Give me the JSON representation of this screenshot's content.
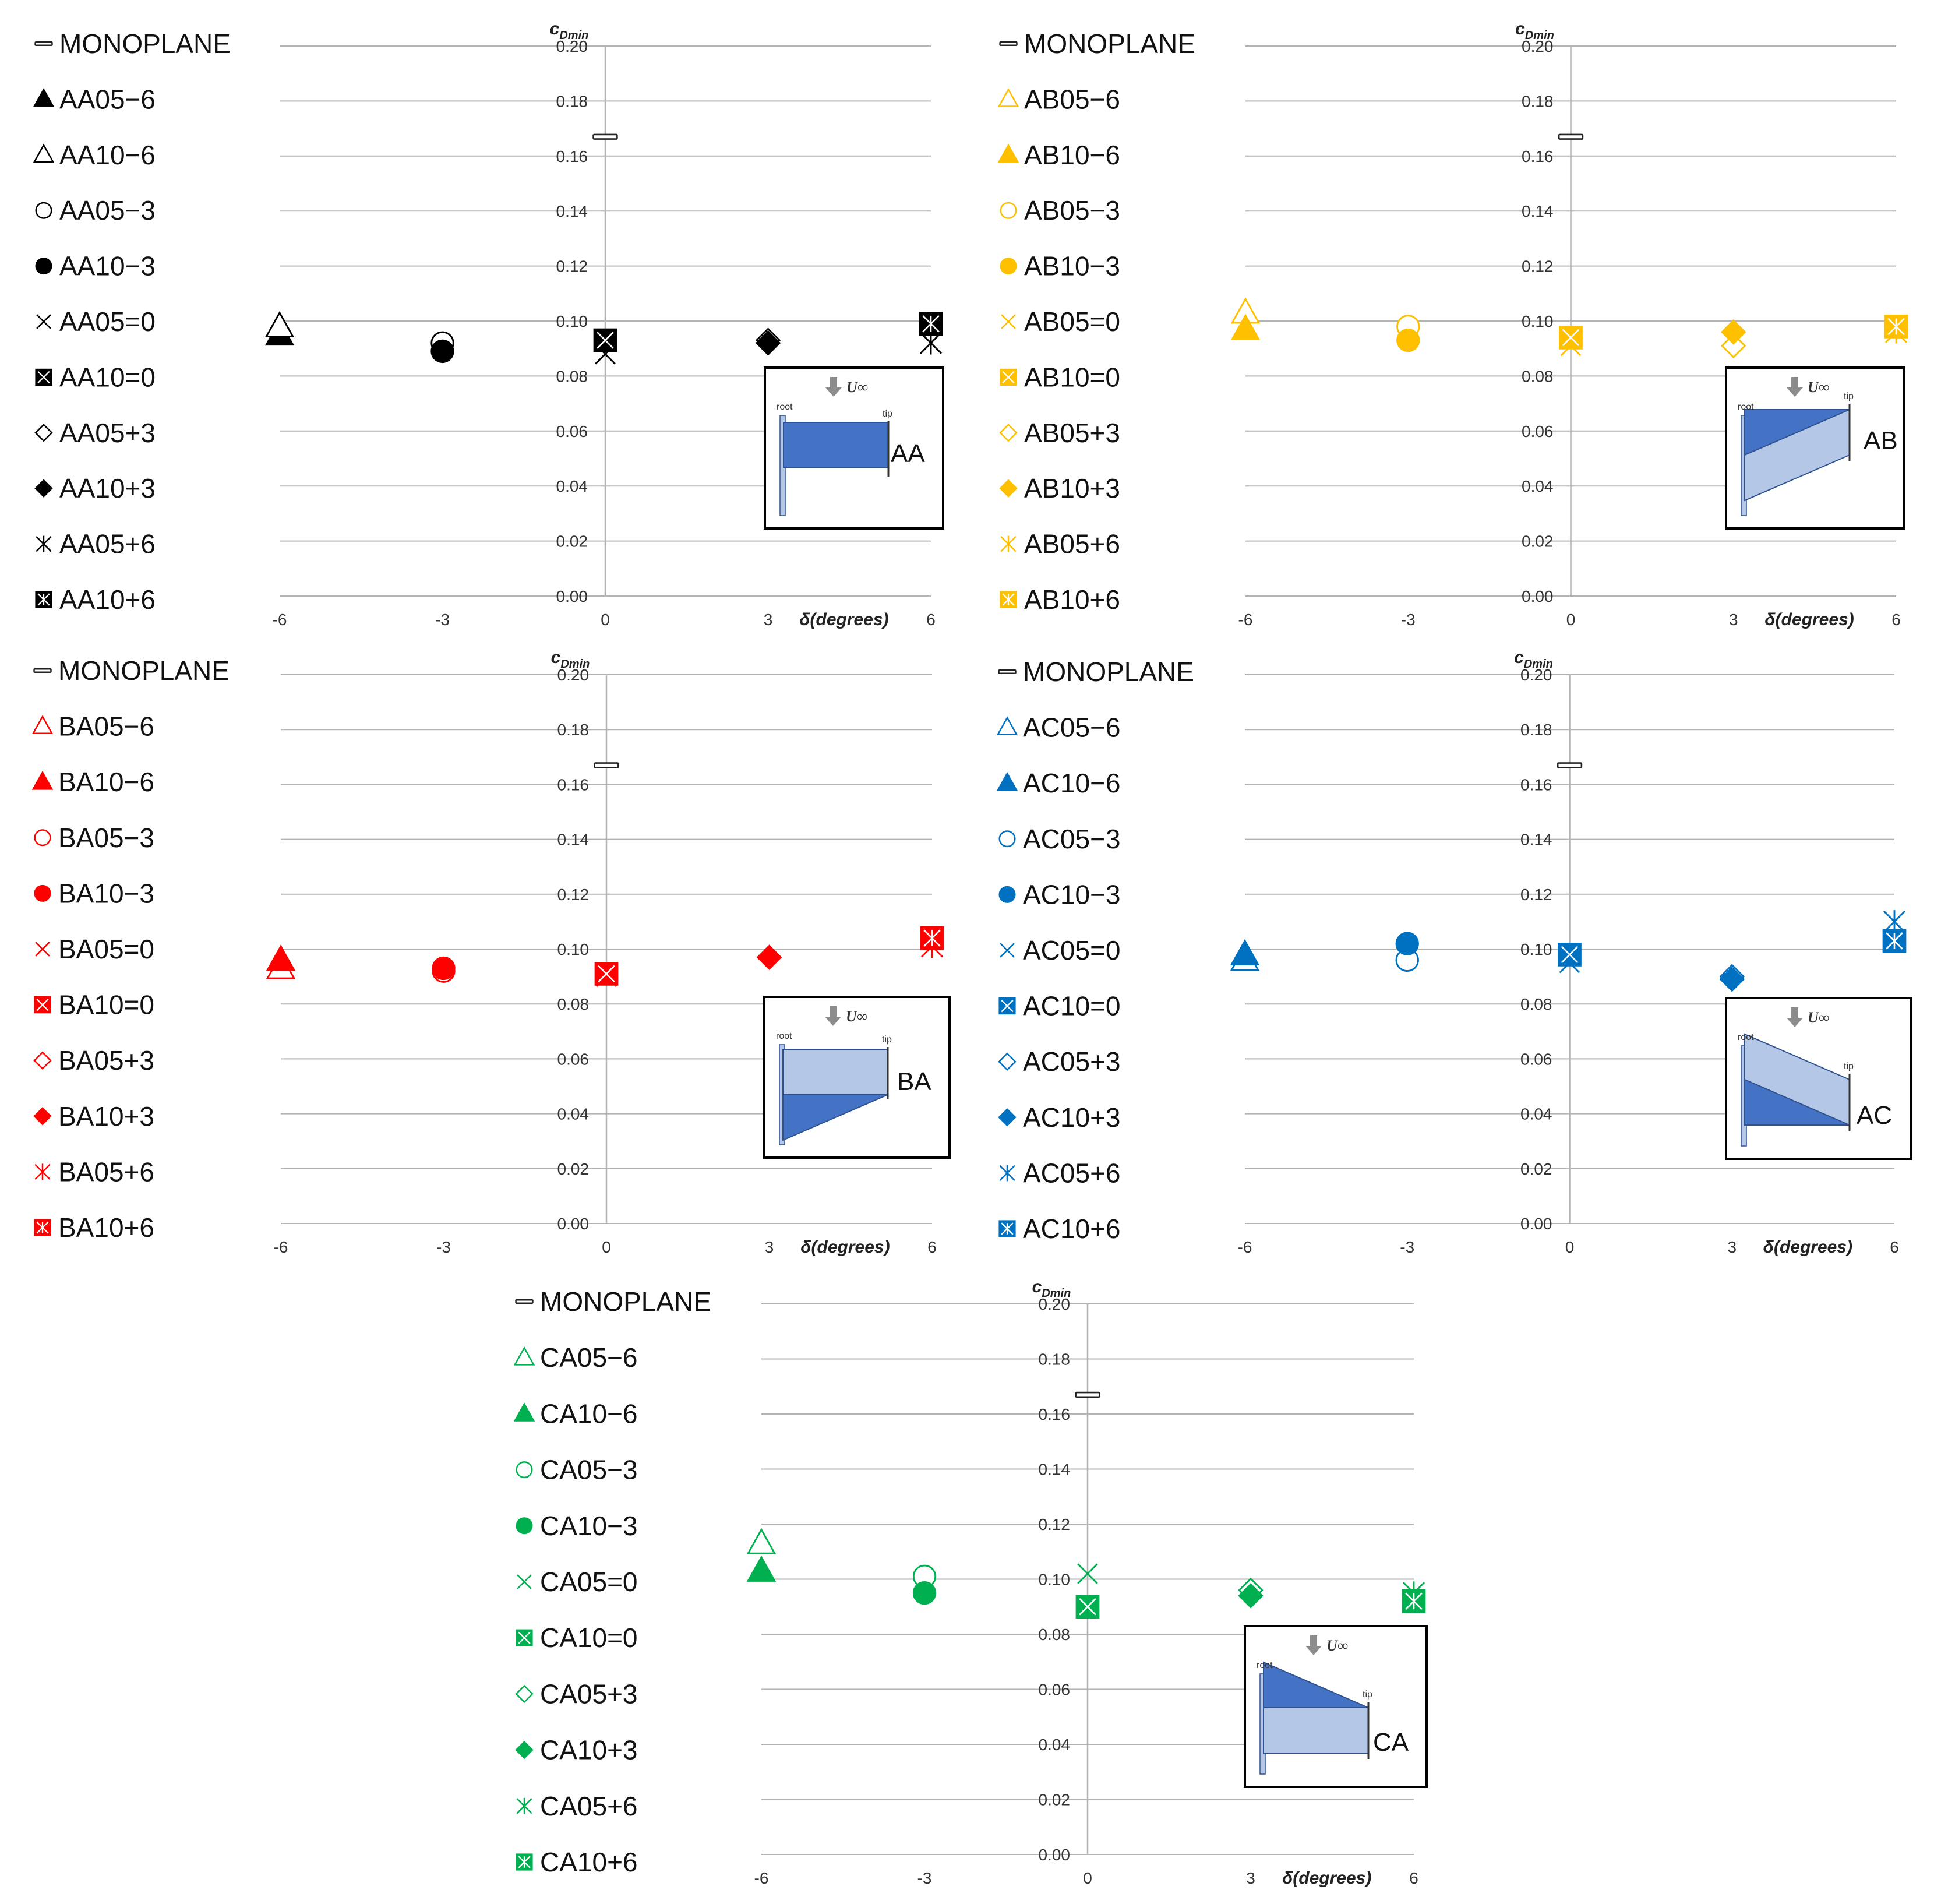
{
  "chart_data": [
    {
      "id": "AA",
      "type": "scatter",
      "color": "#000000",
      "ylabel": "c_Dmin",
      "xlabel": "δ(degrees)",
      "x_ticks": [
        "-6",
        "-3",
        "0",
        "3",
        "6"
      ],
      "y_ticks": [
        "0.20",
        "0.18",
        "0.16",
        "0.14",
        "0.12",
        "0.10",
        "0.08",
        "0.06",
        "0.04",
        "0.02",
        "0.00"
      ],
      "xlim": [
        -6,
        6
      ],
      "ylim": [
        0,
        0.2
      ],
      "grid": true,
      "legend_position": "left",
      "inset": {
        "label": "AA",
        "root": "root",
        "tip": "tip",
        "flow": "U∞",
        "shape": "rect"
      },
      "series": [
        {
          "name": "MONOPLANE",
          "marker": "bar",
          "filled": false,
          "points": [
            [
              0,
              0.167
            ]
          ]
        },
        {
          "name": "AA05−6",
          "marker": "triangle",
          "filled": true,
          "points": [
            [
              -6,
              0.095
            ]
          ]
        },
        {
          "name": "AA10−6",
          "marker": "triangle",
          "filled": false,
          "points": [
            [
              -6,
              0.098
            ]
          ]
        },
        {
          "name": "AA05−3",
          "marker": "circle",
          "filled": false,
          "points": [
            [
              -3,
              0.092
            ]
          ]
        },
        {
          "name": "AA10−3",
          "marker": "circle",
          "filled": true,
          "points": [
            [
              -3,
              0.089
            ]
          ]
        },
        {
          "name": "AA05=0",
          "marker": "x",
          "filled": false,
          "points": [
            [
              0,
              0.088
            ]
          ]
        },
        {
          "name": "AA10=0",
          "marker": "boxx",
          "filled": true,
          "points": [
            [
              0,
              0.093
            ]
          ]
        },
        {
          "name": "AA05+3",
          "marker": "diamond",
          "filled": false,
          "points": [
            [
              3,
              0.093
            ]
          ]
        },
        {
          "name": "AA10+3",
          "marker": "diamond",
          "filled": true,
          "points": [
            [
              3,
              0.092
            ]
          ]
        },
        {
          "name": "AA05+6",
          "marker": "asterisk",
          "filled": false,
          "points": [
            [
              6,
              0.092
            ]
          ]
        },
        {
          "name": "AA10+6",
          "marker": "boxast",
          "filled": true,
          "points": [
            [
              6,
              0.099
            ]
          ]
        }
      ]
    },
    {
      "id": "AB",
      "type": "scatter",
      "color": "#FFC000",
      "ylabel": "c_Dmin",
      "xlabel": "δ(degrees)",
      "x_ticks": [
        "-6",
        "-3",
        "0",
        "3",
        "6"
      ],
      "y_ticks": [
        "0.20",
        "0.18",
        "0.16",
        "0.14",
        "0.12",
        "0.10",
        "0.08",
        "0.06",
        "0.04",
        "0.02",
        "0.00"
      ],
      "xlim": [
        -6,
        6
      ],
      "ylim": [
        0,
        0.2
      ],
      "grid": true,
      "legend_position": "left",
      "inset": {
        "label": "AB",
        "root": "root",
        "tip": "tip",
        "flow": "U∞",
        "shape": "AB"
      },
      "series": [
        {
          "name": "MONOPLANE",
          "marker": "bar",
          "filled": false,
          "points": [
            [
              0,
              0.167
            ]
          ]
        },
        {
          "name": "AB05−6",
          "marker": "triangle",
          "filled": false,
          "points": [
            [
              -6,
              0.103
            ]
          ]
        },
        {
          "name": "AB10−6",
          "marker": "triangle",
          "filled": true,
          "points": [
            [
              -6,
              0.097
            ]
          ]
        },
        {
          "name": "AB05−3",
          "marker": "circle",
          "filled": false,
          "points": [
            [
              -3,
              0.098
            ]
          ]
        },
        {
          "name": "AB10−3",
          "marker": "circle",
          "filled": true,
          "points": [
            [
              -3,
              0.093
            ]
          ]
        },
        {
          "name": "AB05=0",
          "marker": "x",
          "filled": false,
          "points": [
            [
              0,
              0.091
            ]
          ]
        },
        {
          "name": "AB10=0",
          "marker": "boxx",
          "filled": true,
          "points": [
            [
              0,
              0.094
            ]
          ]
        },
        {
          "name": "AB05+3",
          "marker": "diamond",
          "filled": false,
          "points": [
            [
              3,
              0.091
            ]
          ]
        },
        {
          "name": "AB10+3",
          "marker": "diamond",
          "filled": true,
          "points": [
            [
              3,
              0.096
            ]
          ]
        },
        {
          "name": "AB05+6",
          "marker": "asterisk",
          "filled": false,
          "points": [
            [
              6,
              0.096
            ]
          ]
        },
        {
          "name": "AB10+6",
          "marker": "boxast",
          "filled": true,
          "points": [
            [
              6,
              0.098
            ]
          ]
        }
      ]
    },
    {
      "id": "BA",
      "type": "scatter",
      "color": "#FF0000",
      "ylabel": "c_Dmin",
      "xlabel": "δ(degrees)",
      "x_ticks": [
        "-6",
        "-3",
        "0",
        "3",
        "6"
      ],
      "y_ticks": [
        "0.20",
        "0.18",
        "0.16",
        "0.14",
        "0.12",
        "0.10",
        "0.08",
        "0.06",
        "0.04",
        "0.02",
        "0.00"
      ],
      "xlim": [
        -6,
        6
      ],
      "ylim": [
        0,
        0.2
      ],
      "grid": true,
      "legend_position": "left",
      "inset": {
        "label": "BA",
        "root": "root",
        "tip": "tip",
        "flow": "U∞",
        "shape": "BA"
      },
      "series": [
        {
          "name": "MONOPLANE",
          "marker": "bar",
          "filled": false,
          "points": [
            [
              0,
              0.167
            ]
          ]
        },
        {
          "name": "BA05−6",
          "marker": "triangle",
          "filled": false,
          "points": [
            [
              -6,
              0.093
            ]
          ]
        },
        {
          "name": "BA10−6",
          "marker": "triangle",
          "filled": true,
          "points": [
            [
              -6,
              0.096
            ]
          ]
        },
        {
          "name": "BA05−3",
          "marker": "circle",
          "filled": false,
          "points": [
            [
              -3,
              0.092
            ]
          ]
        },
        {
          "name": "BA10−3",
          "marker": "circle",
          "filled": true,
          "points": [
            [
              -3,
              0.093
            ]
          ]
        },
        {
          "name": "BA05=0",
          "marker": "x",
          "filled": false,
          "points": [
            [
              0,
              0.09
            ]
          ]
        },
        {
          "name": "BA10=0",
          "marker": "boxx",
          "filled": true,
          "points": [
            [
              0,
              0.091
            ]
          ]
        },
        {
          "name": "BA05+3",
          "marker": "diamond",
          "filled": false,
          "points": [
            [
              3,
              0.097
            ]
          ]
        },
        {
          "name": "BA10+3",
          "marker": "diamond",
          "filled": true,
          "points": [
            [
              3,
              0.097
            ]
          ]
        },
        {
          "name": "BA05+6",
          "marker": "asterisk",
          "filled": false,
          "points": [
            [
              6,
              0.101
            ]
          ]
        },
        {
          "name": "BA10+6",
          "marker": "boxast",
          "filled": true,
          "points": [
            [
              6,
              0.104
            ]
          ]
        }
      ]
    },
    {
      "id": "AC",
      "type": "scatter",
      "color": "#0070C0",
      "ylabel": "c_Dmin",
      "xlabel": "δ(degrees)",
      "x_ticks": [
        "-6",
        "-3",
        "0",
        "3",
        "6"
      ],
      "y_ticks": [
        "0.20",
        "0.18",
        "0.16",
        "0.14",
        "0.12",
        "0.10",
        "0.08",
        "0.06",
        "0.04",
        "0.02",
        "0.00"
      ],
      "xlim": [
        -6,
        6
      ],
      "ylim": [
        0,
        0.2
      ],
      "grid": true,
      "legend_position": "left",
      "inset": {
        "label": "AC",
        "root": "root",
        "tip": "tip",
        "flow": "U∞",
        "shape": "AC"
      },
      "series": [
        {
          "name": "MONOPLANE",
          "marker": "bar",
          "filled": false,
          "points": [
            [
              0,
              0.167
            ]
          ]
        },
        {
          "name": "AC05−6",
          "marker": "triangle",
          "filled": false,
          "points": [
            [
              -6,
              0.096
            ]
          ]
        },
        {
          "name": "AC10−6",
          "marker": "triangle",
          "filled": true,
          "points": [
            [
              -6,
              0.098
            ]
          ]
        },
        {
          "name": "AC05−3",
          "marker": "circle",
          "filled": false,
          "points": [
            [
              -3,
              0.096
            ]
          ]
        },
        {
          "name": "AC10−3",
          "marker": "circle",
          "filled": true,
          "points": [
            [
              -3,
              0.102
            ]
          ]
        },
        {
          "name": "AC05=0",
          "marker": "x",
          "filled": false,
          "points": [
            [
              0,
              0.095
            ]
          ]
        },
        {
          "name": "AC10=0",
          "marker": "boxx",
          "filled": true,
          "points": [
            [
              0,
              0.098
            ]
          ]
        },
        {
          "name": "AC05+3",
          "marker": "diamond",
          "filled": false,
          "points": [
            [
              3,
              0.09
            ]
          ]
        },
        {
          "name": "AC10+3",
          "marker": "diamond",
          "filled": true,
          "points": [
            [
              3,
              0.089
            ]
          ]
        },
        {
          "name": "AC05+6",
          "marker": "asterisk",
          "filled": false,
          "points": [
            [
              6,
              0.11
            ]
          ]
        },
        {
          "name": "AC10+6",
          "marker": "boxast",
          "filled": true,
          "points": [
            [
              6,
              0.103
            ]
          ]
        }
      ]
    },
    {
      "id": "CA",
      "type": "scatter",
      "color": "#00B050",
      "ylabel": "c_Dmin",
      "xlabel": "δ(degrees)",
      "x_ticks": [
        "-6",
        "-3",
        "0",
        "3",
        "6"
      ],
      "y_ticks": [
        "0.20",
        "0.18",
        "0.16",
        "0.14",
        "0.12",
        "0.10",
        "0.08",
        "0.06",
        "0.04",
        "0.02",
        "0.00"
      ],
      "xlim": [
        -6,
        6
      ],
      "ylim": [
        0,
        0.2
      ],
      "grid": true,
      "legend_position": "left",
      "inset": {
        "label": "CA",
        "root": "root",
        "tip": "tip",
        "flow": "U∞",
        "shape": "CA"
      },
      "series": [
        {
          "name": "MONOPLANE",
          "marker": "bar",
          "filled": false,
          "points": [
            [
              0,
              0.167
            ]
          ]
        },
        {
          "name": "CA05−6",
          "marker": "triangle",
          "filled": false,
          "points": [
            [
              -6,
              0.113
            ]
          ]
        },
        {
          "name": "CA10−6",
          "marker": "triangle",
          "filled": true,
          "points": [
            [
              -6,
              0.103
            ]
          ]
        },
        {
          "name": "CA05−3",
          "marker": "circle",
          "filled": false,
          "points": [
            [
              -3,
              0.101
            ]
          ]
        },
        {
          "name": "CA10−3",
          "marker": "circle",
          "filled": true,
          "points": [
            [
              -3,
              0.095
            ]
          ]
        },
        {
          "name": "CA05=0",
          "marker": "x",
          "filled": false,
          "points": [
            [
              0,
              0.102
            ]
          ]
        },
        {
          "name": "CA10=0",
          "marker": "boxx",
          "filled": true,
          "points": [
            [
              0,
              0.09
            ]
          ]
        },
        {
          "name": "CA05+3",
          "marker": "diamond",
          "filled": false,
          "points": [
            [
              3,
              0.096
            ]
          ]
        },
        {
          "name": "CA10+3",
          "marker": "diamond",
          "filled": true,
          "points": [
            [
              3,
              0.094
            ]
          ]
        },
        {
          "name": "CA05+6",
          "marker": "asterisk",
          "filled": false,
          "points": [
            [
              6,
              0.095
            ]
          ]
        },
        {
          "name": "CA10+6",
          "marker": "boxast",
          "filled": true,
          "points": [
            [
              6,
              0.092
            ]
          ]
        }
      ]
    }
  ]
}
